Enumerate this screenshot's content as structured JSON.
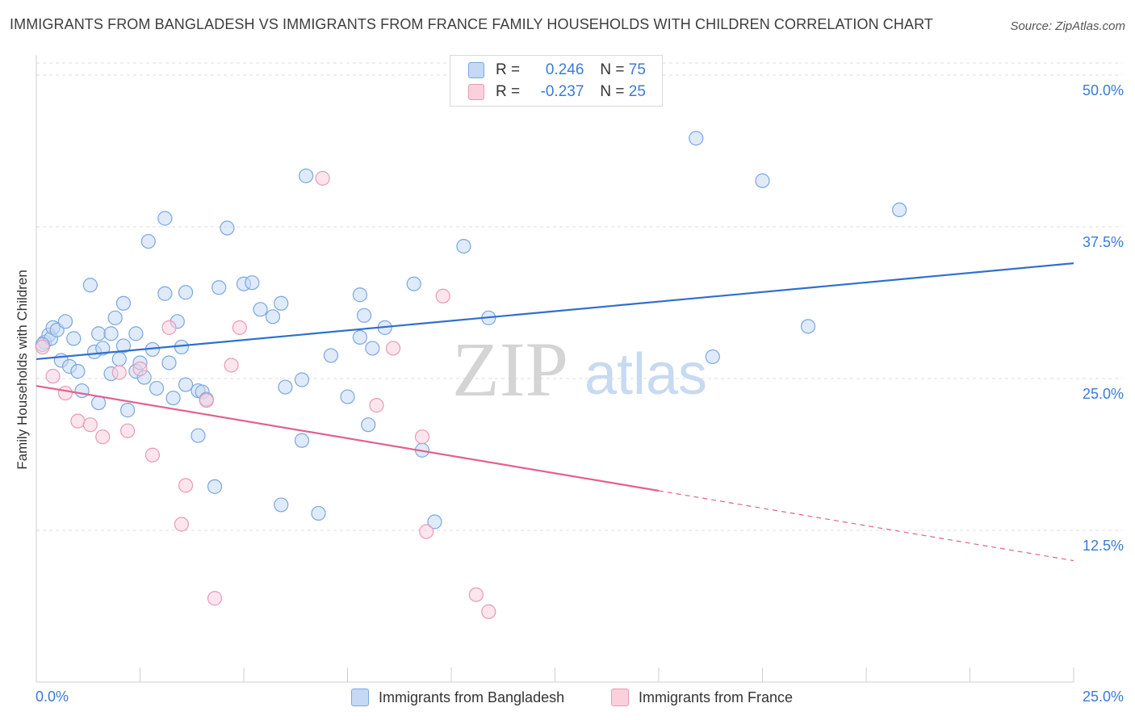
{
  "title": "IMMIGRANTS FROM BANGLADESH VS IMMIGRANTS FROM FRANCE FAMILY HOUSEHOLDS WITH CHILDREN CORRELATION CHART",
  "source": "Source: ZipAtlas.com",
  "watermark": {
    "zip": "ZIP",
    "atlas": "atlas"
  },
  "legend": {
    "rows": [
      {
        "r_label": "R =",
        "r_value": "0.246",
        "n_label": "N =",
        "n_value": "75"
      },
      {
        "r_label": "R =",
        "r_value": "-0.237",
        "n_label": "N =",
        "n_value": "25"
      }
    ]
  },
  "colors": {
    "bangladesh_fill": "#c5d9f5",
    "bangladesh_stroke": "#7aa7e0",
    "bangladesh_line": "#2f6fce",
    "france_fill": "#f9d0dc",
    "france_stroke": "#e99ab3",
    "france_line": "#e0628f",
    "tick_text": "#3a7bd5",
    "grid": "#dddddd"
  },
  "chart_data": {
    "type": "scatter",
    "title": "IMMIGRANTS FROM BANGLADESH VS IMMIGRANTS FROM FRANCE FAMILY HOUSEHOLDS WITH CHILDREN CORRELATION CHART",
    "xlabel": "",
    "ylabel": "Family Households with Children",
    "xlim": [
      0,
      25
    ],
    "ylim": [
      0,
      51
    ],
    "x_tick_labels": [
      "0.0%",
      "25.0%"
    ],
    "y_ticks": [
      12.5,
      25.0,
      37.5,
      50.0
    ],
    "y_tick_labels": [
      "12.5%",
      "25.0%",
      "37.5%",
      "50.0%"
    ],
    "grid": true,
    "legend_position": "top-center",
    "series": [
      {
        "name": "Immigrants from Bangladesh",
        "r": 0.246,
        "n": 75,
        "trend": {
          "x": [
            0,
            25
          ],
          "y": [
            26.6,
            34.5
          ],
          "dashed_from": null
        },
        "points": [
          [
            0.2,
            28.0
          ],
          [
            0.3,
            28.6
          ],
          [
            0.35,
            28.3
          ],
          [
            0.4,
            29.2
          ],
          [
            0.5,
            29.0
          ],
          [
            0.6,
            26.5
          ],
          [
            0.7,
            29.7
          ],
          [
            0.8,
            26.0
          ],
          [
            0.9,
            28.3
          ],
          [
            1.0,
            25.6
          ],
          [
            1.1,
            24.0
          ],
          [
            1.3,
            32.7
          ],
          [
            1.4,
            27.2
          ],
          [
            1.5,
            28.7
          ],
          [
            1.5,
            23.0
          ],
          [
            1.6,
            27.5
          ],
          [
            1.8,
            28.7
          ],
          [
            1.8,
            25.4
          ],
          [
            1.9,
            30.0
          ],
          [
            2.0,
            26.6
          ],
          [
            2.1,
            31.2
          ],
          [
            2.1,
            27.7
          ],
          [
            2.2,
            22.4
          ],
          [
            2.4,
            28.7
          ],
          [
            2.4,
            25.6
          ],
          [
            2.5,
            26.3
          ],
          [
            2.6,
            25.1
          ],
          [
            2.7,
            36.3
          ],
          [
            2.8,
            27.4
          ],
          [
            2.9,
            24.2
          ],
          [
            3.1,
            38.2
          ],
          [
            3.1,
            32.0
          ],
          [
            3.2,
            26.3
          ],
          [
            3.3,
            23.4
          ],
          [
            3.4,
            29.7
          ],
          [
            3.5,
            27.6
          ],
          [
            3.6,
            32.1
          ],
          [
            3.9,
            24.0
          ],
          [
            3.9,
            20.3
          ],
          [
            4.0,
            23.9
          ],
          [
            4.1,
            23.3
          ],
          [
            4.3,
            16.1
          ],
          [
            4.4,
            32.5
          ],
          [
            4.6,
            37.4
          ],
          [
            5.0,
            32.8
          ],
          [
            5.4,
            30.7
          ],
          [
            5.7,
            30.1
          ],
          [
            5.9,
            31.2
          ],
          [
            5.9,
            14.6
          ],
          [
            6.0,
            24.3
          ],
          [
            6.4,
            24.9
          ],
          [
            6.4,
            19.9
          ],
          [
            6.5,
            41.7
          ],
          [
            6.8,
            13.9
          ],
          [
            7.1,
            26.9
          ],
          [
            7.5,
            23.5
          ],
          [
            7.8,
            28.4
          ],
          [
            7.8,
            31.9
          ],
          [
            7.9,
            30.2
          ],
          [
            8.0,
            21.2
          ],
          [
            8.1,
            27.5
          ],
          [
            8.4,
            29.2
          ],
          [
            9.1,
            32.8
          ],
          [
            9.3,
            19.1
          ],
          [
            9.6,
            13.2
          ],
          [
            10.3,
            35.9
          ],
          [
            10.9,
            30.0
          ],
          [
            15.9,
            44.8
          ],
          [
            16.3,
            26.8
          ],
          [
            17.5,
            41.3
          ],
          [
            18.6,
            29.3
          ],
          [
            20.8,
            38.9
          ],
          [
            0.15,
            27.8
          ],
          [
            5.2,
            32.9
          ],
          [
            3.6,
            24.5
          ]
        ]
      },
      {
        "name": "Immigrants from France",
        "r": -0.237,
        "n": 25,
        "trend": {
          "x": [
            0,
            25
          ],
          "y": [
            24.4,
            10.0
          ],
          "dashed_from": 15.0
        },
        "points": [
          [
            0.15,
            27.6
          ],
          [
            0.4,
            25.2
          ],
          [
            0.7,
            23.8
          ],
          [
            1.0,
            21.5
          ],
          [
            1.3,
            21.2
          ],
          [
            1.6,
            20.2
          ],
          [
            2.0,
            25.5
          ],
          [
            2.2,
            20.7
          ],
          [
            2.5,
            25.8
          ],
          [
            2.8,
            18.7
          ],
          [
            3.2,
            29.2
          ],
          [
            3.5,
            13.0
          ],
          [
            3.6,
            16.2
          ],
          [
            4.1,
            23.2
          ],
          [
            4.3,
            6.9
          ],
          [
            4.7,
            26.1
          ],
          [
            4.9,
            29.2
          ],
          [
            6.9,
            41.5
          ],
          [
            8.2,
            22.8
          ],
          [
            8.6,
            27.5
          ],
          [
            9.3,
            20.2
          ],
          [
            9.4,
            12.4
          ],
          [
            9.8,
            31.8
          ],
          [
            10.6,
            7.2
          ],
          [
            10.9,
            5.8
          ]
        ]
      }
    ]
  },
  "bottom_legend": {
    "items": [
      "Immigrants from Bangladesh",
      "Immigrants from France"
    ]
  }
}
